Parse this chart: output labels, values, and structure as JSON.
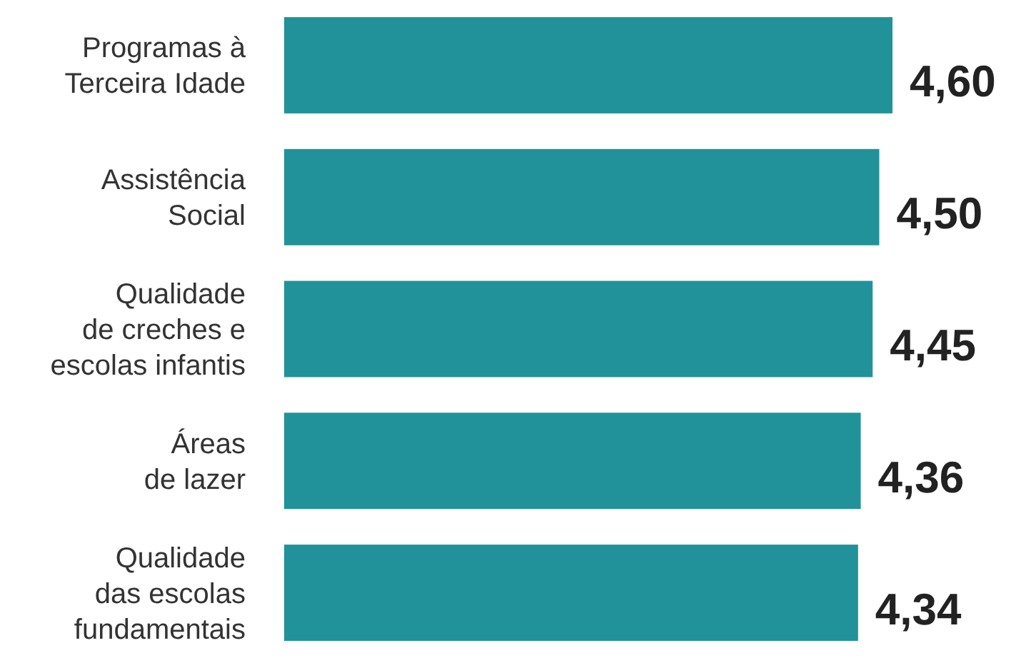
{
  "chart_data": {
    "type": "bar",
    "orientation": "horizontal",
    "categories": [
      "Programas à\nTerceira Idade",
      "Assistência\nSocial",
      "Qualidade\nde creches e\nescolas infantis",
      "Áreas\nde lazer",
      "Qualidade\ndas escolas\nfundamentais"
    ],
    "values": [
      4.6,
      4.5,
      4.45,
      4.36,
      4.34
    ],
    "value_labels": [
      "4,60",
      "4,50",
      "4,45",
      "4,36",
      "4,34"
    ],
    "color": "#21929a"
  }
}
